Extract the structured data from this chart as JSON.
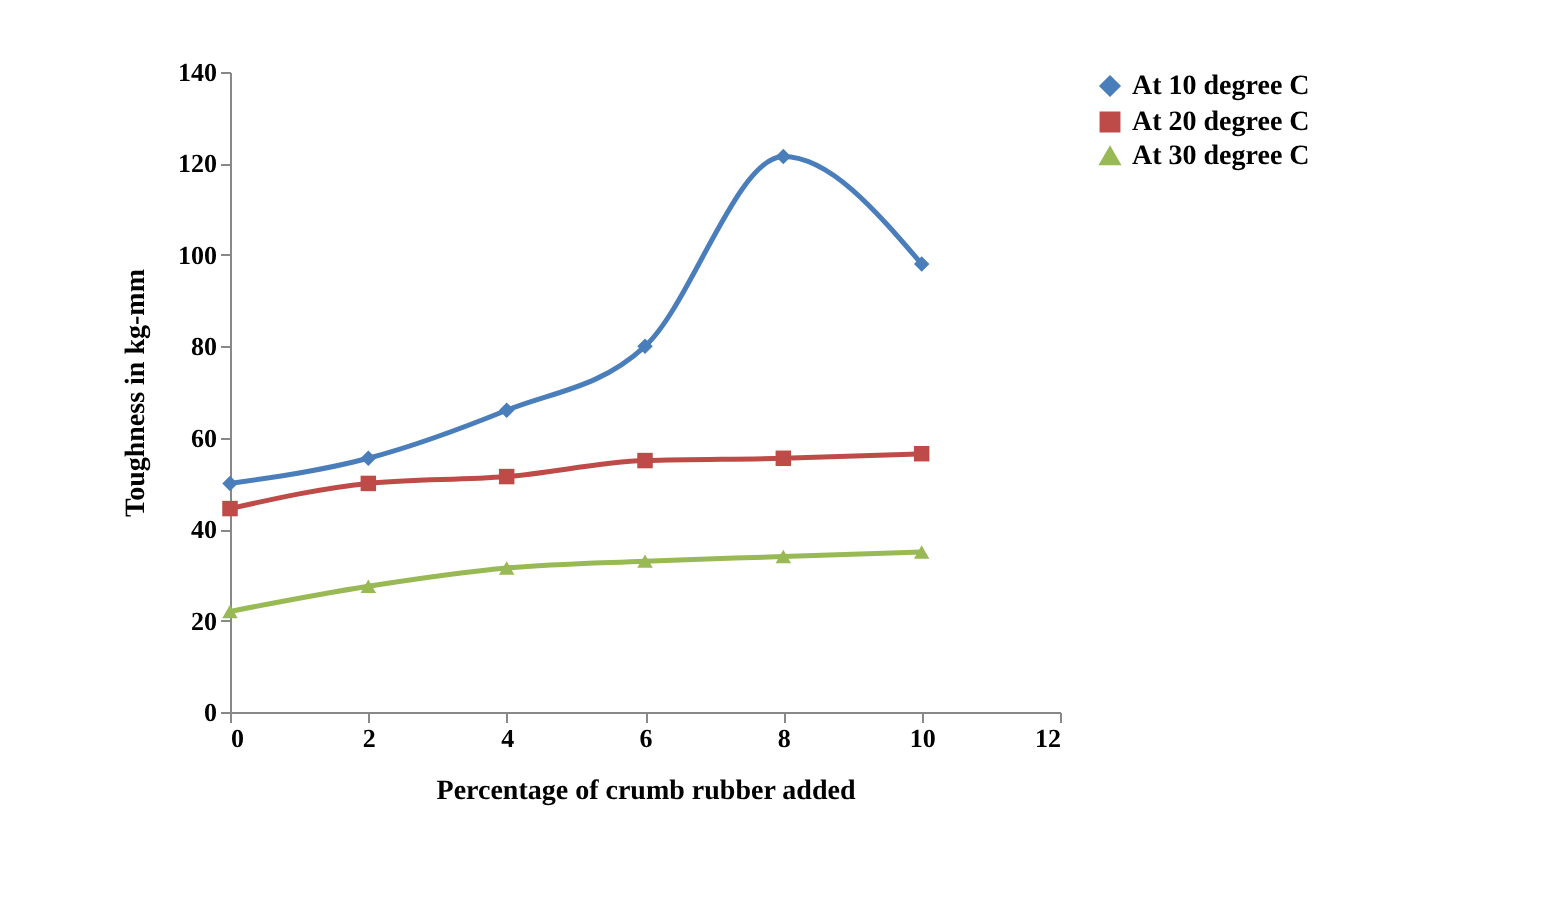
{
  "chart_data": {
    "type": "line",
    "xlabel": "Percentage of crumb rubber added",
    "ylabel": "Toughness in kg-mm",
    "x": [
      0,
      2,
      4,
      6,
      8,
      10
    ],
    "series": [
      {
        "name": "At 10 degree C",
        "color": "#4a7ebb",
        "marker": "diamond",
        "values": [
          50,
          55.5,
          66,
          80,
          121.5,
          98
        ]
      },
      {
        "name": "At 20 degree C",
        "color": "#be4b48",
        "marker": "square",
        "values": [
          44.5,
          50,
          51.5,
          55,
          55.5,
          56.5
        ]
      },
      {
        "name": "At 30 degree C",
        "color": "#98b954",
        "marker": "triangle",
        "values": [
          22,
          27.5,
          31.5,
          33,
          34,
          35
        ]
      }
    ],
    "xlim": [
      0,
      12
    ],
    "xticks": [
      0,
      2,
      4,
      6,
      8,
      10,
      12
    ],
    "ylim": [
      0,
      140
    ],
    "yticks": [
      0,
      20,
      40,
      60,
      80,
      100,
      120,
      140
    ],
    "grid": false,
    "legend": "right",
    "line_style": "solid"
  }
}
